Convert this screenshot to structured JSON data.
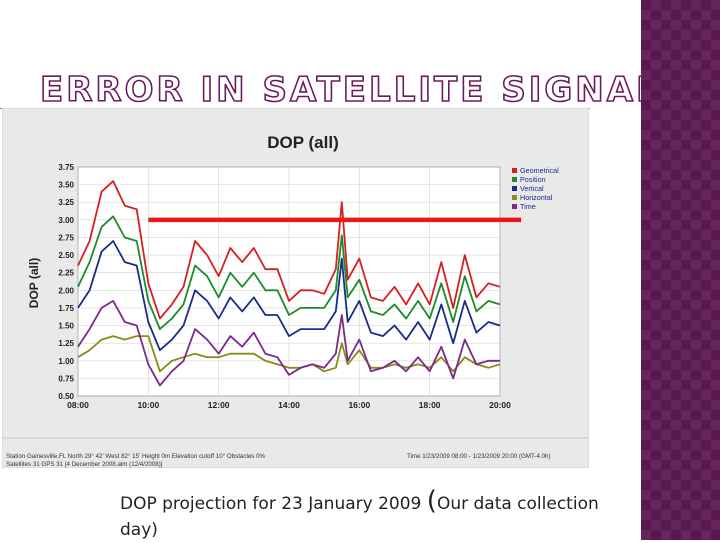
{
  "slide": {
    "title": "ERROR IN SATELLITE SIGNALS",
    "caption_main": "DOP projection for 23 January 2009",
    "caption_paren": "(",
    "caption_rest": "Our data collection day)"
  },
  "chart_data": {
    "type": "line",
    "title": "DOP (all)",
    "ylabel": "DOP (all)",
    "xlabel": "",
    "ylim": [
      0.5,
      3.75
    ],
    "xlim": [
      8,
      20
    ],
    "yticks": [
      "3.75",
      "3.50",
      "3.25",
      "3.00",
      "2.75",
      "2.50",
      "2.25",
      "2.00",
      "1.75",
      "1.50",
      "1.25",
      "1.00",
      "0.75",
      "0.50"
    ],
    "xticks": [
      "08:00",
      "10:00",
      "12:00",
      "14:00",
      "16:00",
      "18:00",
      "20:00"
    ],
    "footer_left_1": "Station Gainesville,FL  North 29° 42'  West 82° 15'  Height 0m     Elevation cutoff 10°  Obstacles 0%",
    "footer_left_2": "Satellites 31  GPS 31  [4 December 2008.alm (12/4/2008)]",
    "footer_right": "Time 1/23/2009 08:00 - 1/23/2009 20:00 (GMT-4.0h)",
    "annotation": {
      "label": "threshold line",
      "y": 3.0,
      "x_start": 10.0,
      "x_end": 20.6,
      "color": "#e81818"
    },
    "x": [
      8.0,
      8.33,
      8.67,
      9.0,
      9.33,
      9.67,
      10.0,
      10.33,
      10.67,
      11.0,
      11.33,
      11.67,
      12.0,
      12.33,
      12.67,
      13.0,
      13.33,
      13.67,
      14.0,
      14.33,
      14.67,
      15.0,
      15.33,
      15.5,
      15.67,
      16.0,
      16.33,
      16.67,
      17.0,
      17.33,
      17.67,
      18.0,
      18.33,
      18.67,
      19.0,
      19.33,
      19.67,
      20.0
    ],
    "series": [
      {
        "name": "Geometrical",
        "color": "#d42020",
        "values": [
          2.35,
          2.7,
          3.4,
          3.55,
          3.2,
          3.15,
          2.1,
          1.6,
          1.8,
          2.05,
          2.7,
          2.5,
          2.2,
          2.6,
          2.4,
          2.6,
          2.3,
          2.3,
          1.85,
          2.0,
          2.0,
          1.95,
          2.3,
          3.25,
          2.15,
          2.45,
          1.9,
          1.85,
          2.05,
          1.8,
          2.1,
          1.8,
          2.4,
          1.75,
          2.5,
          1.9,
          2.1,
          2.05
        ]
      },
      {
        "name": "Position",
        "color": "#1e8a2a",
        "values": [
          2.05,
          2.4,
          2.9,
          3.05,
          2.75,
          2.7,
          1.85,
          1.45,
          1.6,
          1.8,
          2.35,
          2.2,
          1.9,
          2.25,
          2.05,
          2.25,
          2.0,
          2.0,
          1.65,
          1.75,
          1.75,
          1.75,
          2.0,
          2.78,
          1.9,
          2.15,
          1.7,
          1.65,
          1.8,
          1.6,
          1.85,
          1.6,
          2.1,
          1.55,
          2.2,
          1.7,
          1.85,
          1.8
        ]
      },
      {
        "name": "Vertical",
        "color": "#1a2c8a",
        "values": [
          1.75,
          2.0,
          2.55,
          2.7,
          2.4,
          2.35,
          1.55,
          1.15,
          1.3,
          1.5,
          2.0,
          1.85,
          1.6,
          1.9,
          1.7,
          1.9,
          1.65,
          1.65,
          1.35,
          1.45,
          1.45,
          1.45,
          1.7,
          2.45,
          1.55,
          1.85,
          1.4,
          1.35,
          1.5,
          1.3,
          1.55,
          1.3,
          1.8,
          1.25,
          1.85,
          1.4,
          1.55,
          1.5
        ]
      },
      {
        "name": "Horizontal",
        "color": "#8a8a18",
        "values": [
          1.05,
          1.15,
          1.3,
          1.35,
          1.3,
          1.35,
          1.35,
          0.85,
          1.0,
          1.05,
          1.1,
          1.05,
          1.05,
          1.1,
          1.1,
          1.1,
          1.0,
          0.95,
          0.9,
          0.9,
          0.95,
          0.85,
          0.9,
          1.25,
          0.95,
          1.15,
          0.9,
          0.9,
          0.95,
          0.9,
          0.95,
          0.9,
          1.05,
          0.85,
          1.05,
          0.95,
          0.9,
          0.95
        ]
      },
      {
        "name": "Time",
        "color": "#7a2a8a",
        "values": [
          1.2,
          1.45,
          1.75,
          1.85,
          1.55,
          1.5,
          0.95,
          0.65,
          0.85,
          1.0,
          1.45,
          1.3,
          1.1,
          1.35,
          1.2,
          1.4,
          1.1,
          1.05,
          0.8,
          0.9,
          0.95,
          0.9,
          1.1,
          1.65,
          1.0,
          1.3,
          0.85,
          0.9,
          1.0,
          0.85,
          1.05,
          0.85,
          1.2,
          0.75,
          1.3,
          0.95,
          1.0,
          1.0
        ]
      }
    ]
  }
}
